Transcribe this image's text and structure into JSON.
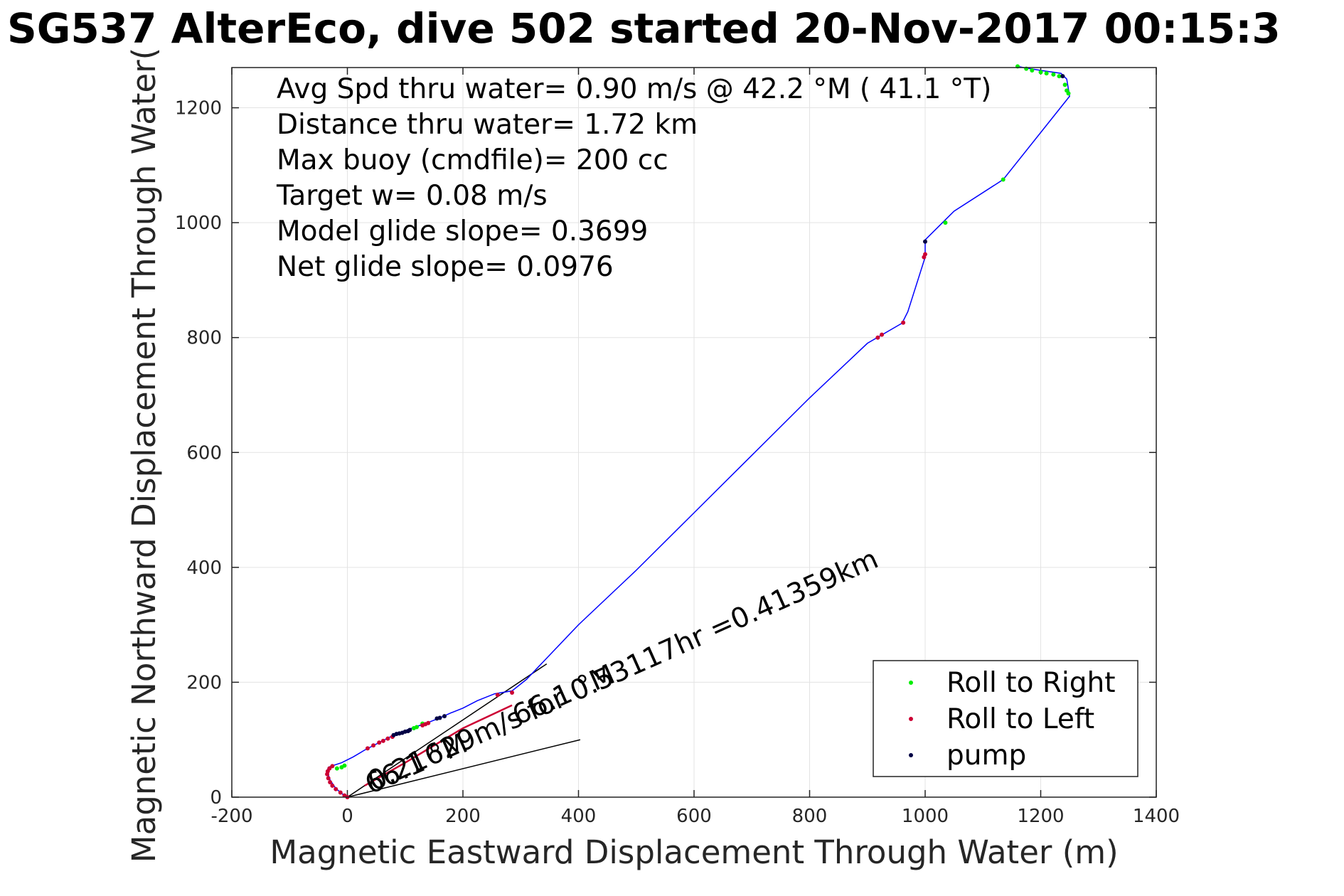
{
  "chart_data": {
    "type": "line",
    "title": "SG537 AlterEco, dive 502 started 20-Nov-2017 00:15:3",
    "xlabel": "Magnetic Eastward Displacement Through Water (m)",
    "ylabel": "Magnetic Northward Displacement Through Water(",
    "xlim": [
      -200,
      1400
    ],
    "ylim": [
      0,
      1270
    ],
    "xticks": [
      -200,
      0,
      200,
      400,
      600,
      800,
      1000,
      1200,
      1400
    ],
    "yticks": [
      0,
      200,
      400,
      600,
      800,
      1000,
      1200
    ],
    "grid": true,
    "legend_position": "bottom-right",
    "info_lines": [
      "Avg Spd thru water=  0.90 m/s @  42.2 °M ( 41.1 °T)",
      "Distance thru water=  1.72 km",
      "Max buoy (cmdfile)= 200 cc",
      "Target w= 0.08 m/s",
      "Model glide slope= 0.3699",
      "Net glide slope= 0.0976"
    ],
    "annotations": [
      {
        "text": "0.21629m/s for 0.53117hr =0.41359km",
        "x": 45,
        "y": 10,
        "angle_deg": 24
      },
      {
        "text": "66.1 °M",
        "x": 40,
        "y": 5,
        "angle_deg": 24
      },
      {
        "text": "66.1 °M",
        "x": 295,
        "y": 125,
        "angle_deg": 24
      }
    ],
    "reference_lines": [
      {
        "name": "current",
        "x": [
          0,
          345
        ],
        "y": [
          0,
          232
        ],
        "color": "#000000"
      },
      {
        "name": "heading",
        "x": [
          0,
          403
        ],
        "y": [
          0,
          100
        ],
        "color": "#000000"
      }
    ],
    "series": [
      {
        "name": "track",
        "kind": "line",
        "color": "#0000ff",
        "x": [
          0,
          -8,
          -20,
          -30,
          -35,
          -33,
          -25,
          -10,
          10,
          30,
          55,
          80,
          100,
          120,
          140,
          160,
          180,
          200,
          225,
          255,
          285,
          310,
          400,
          500,
          600,
          700,
          800,
          900,
          960,
          970,
          1000,
          1000,
          1050,
          1135,
          1250,
          1245,
          1235,
          1200,
          1170,
          1160
        ],
        "y": [
          0,
          5,
          15,
          30,
          45,
          52,
          55,
          60,
          70,
          82,
          95,
          108,
          116,
          123,
          130,
          138,
          147,
          155,
          168,
          180,
          185,
          205,
          300,
          395,
          495,
          595,
          695,
          790,
          825,
          845,
          940,
          970,
          1020,
          1075,
          1220,
          1250,
          1260,
          1265,
          1270,
          1272
        ]
      },
      {
        "name": "Roll to Right",
        "kind": "points",
        "color": "#00ee00",
        "x": [
          -5,
          -10,
          -18,
          115,
          120,
          130,
          1035,
          1135,
          1160,
          1175,
          1185,
          1200,
          1210,
          1222,
          1232,
          1242,
          1245,
          1248
        ],
        "y": [
          55,
          52,
          50,
          120,
          122,
          128,
          1000,
          1075,
          1272,
          1268,
          1265,
          1262,
          1260,
          1258,
          1255,
          1240,
          1230,
          1225
        ]
      },
      {
        "name": "Roll to Left",
        "kind": "points",
        "color": "#cc0033",
        "x": [
          0,
          -5,
          -12,
          -20,
          -26,
          -30,
          -33,
          -35,
          -34,
          -31,
          -26,
          35,
          45,
          55,
          62,
          70,
          78,
          130,
          135,
          140,
          260,
          285,
          918,
          925,
          962,
          998,
          1000
        ],
        "y": [
          0,
          3,
          8,
          14,
          20,
          26,
          33,
          40,
          45,
          50,
          54,
          85,
          90,
          95,
          98,
          102,
          105,
          125,
          127,
          129,
          178,
          182,
          800,
          805,
          826,
          940,
          945
        ],
        "trail_x": [
          30,
          100,
          200,
          285
        ],
        "trail_y": [
          20,
          60,
          120,
          160
        ]
      },
      {
        "name": "pump",
        "kind": "points",
        "color": "#000044",
        "x": [
          80,
          85,
          90,
          95,
          100,
          105,
          108,
          155,
          160,
          168,
          1000,
          1238
        ],
        "y": [
          108,
          110,
          111,
          112,
          114,
          115,
          117,
          137,
          138,
          141,
          967,
          1255
        ]
      }
    ],
    "legend": [
      "Roll to Right",
      "Roll to Left",
      "pump"
    ]
  }
}
